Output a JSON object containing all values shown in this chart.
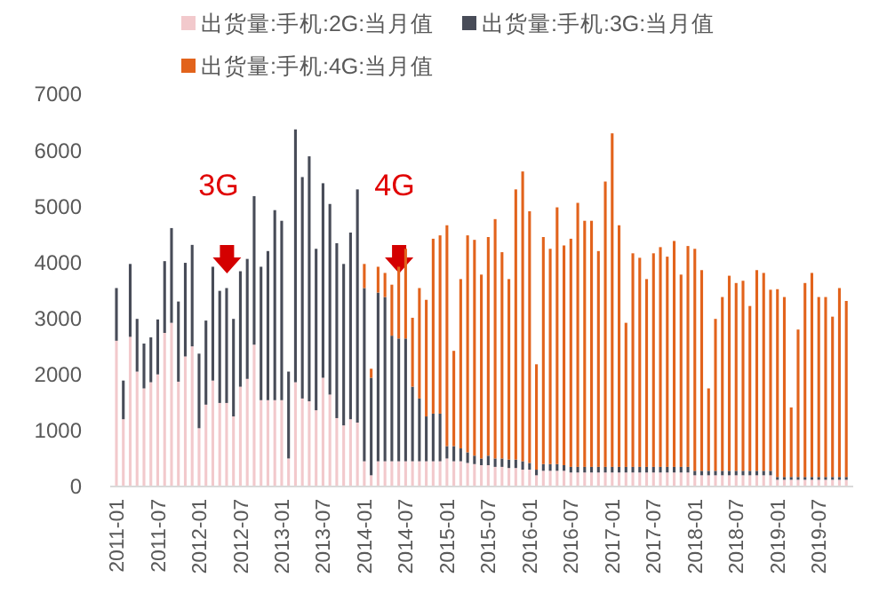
{
  "chart_data": {
    "type": "bar",
    "stacked": true,
    "legend": "top",
    "ylim": [
      0,
      7000
    ],
    "yticks": [
      0,
      1000,
      2000,
      3000,
      4000,
      5000,
      6000,
      7000
    ],
    "grid": false,
    "annotations": [
      "3G",
      "4G"
    ],
    "categories": [
      "2011-01",
      null,
      null,
      null,
      null,
      null,
      "2011-07",
      null,
      null,
      null,
      null,
      null,
      "2012-01",
      null,
      null,
      null,
      null,
      null,
      "2012-07",
      null,
      null,
      null,
      null,
      null,
      "2013-01",
      null,
      null,
      null,
      null,
      null,
      "2013-07",
      null,
      null,
      null,
      null,
      null,
      "2014-01",
      null,
      null,
      null,
      null,
      null,
      "2014-07",
      null,
      null,
      null,
      null,
      null,
      "2015-01",
      null,
      null,
      null,
      null,
      null,
      "2015-07",
      null,
      null,
      null,
      null,
      null,
      "2016-01",
      null,
      null,
      null,
      null,
      null,
      "2016-07",
      null,
      null,
      null,
      null,
      null,
      "2017-01",
      null,
      null,
      null,
      null,
      null,
      "2017-07",
      null,
      null,
      null,
      null,
      null,
      "2018-01",
      null,
      null,
      null,
      null,
      null,
      "2018-07",
      null,
      null,
      null,
      null,
      null,
      "2019-01",
      null,
      null,
      null,
      null,
      null,
      "2019-07",
      null,
      null,
      null,
      null
    ],
    "series": [
      {
        "name": "出货量:手机:2G:当月值",
        "color": "#f2c9cc",
        "values": [
          2600,
          1200,
          2670,
          2050,
          1750,
          1860,
          2000,
          2740,
          2920,
          1870,
          2320,
          2500,
          1040,
          1460,
          1890,
          1490,
          1490,
          1250,
          1780,
          1920,
          2530,
          1540,
          1540,
          1540,
          1540,
          500,
          1860,
          1570,
          1520,
          1360,
          1940,
          1640,
          1220,
          1090,
          1200,
          1140,
          450,
          200,
          450,
          450,
          450,
          450,
          450,
          450,
          450,
          450,
          450,
          450,
          500,
          450,
          450,
          420,
          400,
          380,
          380,
          350,
          350,
          330,
          330,
          300,
          300,
          200,
          280,
          280,
          280,
          280,
          250,
          250,
          250,
          250,
          250,
          250,
          250,
          250,
          250,
          250,
          250,
          250,
          250,
          250,
          250,
          250,
          250,
          250,
          200,
          200,
          200,
          200,
          200,
          200,
          200,
          200,
          200,
          200,
          200,
          200,
          120,
          120,
          120,
          120,
          120,
          120,
          120,
          120,
          120,
          120,
          120
        ]
      },
      {
        "name": "出货量:手机:3G:当月值",
        "color": "#484c58",
        "values": [
          940,
          690,
          1300,
          940,
          800,
          800,
          980,
          1280,
          1690,
          1430,
          1670,
          1810,
          1330,
          1500,
          2030,
          2000,
          2050,
          1740,
          2060,
          2140,
          2650,
          2380,
          2660,
          3390,
          3200,
          1550,
          4510,
          3950,
          4370,
          2880,
          3470,
          3400,
          3120,
          2880,
          3330,
          4160,
          3090,
          1740,
          3010,
          2930,
          2240,
          2190,
          2190,
          1330,
          1120,
          800,
          850,
          850,
          220,
          270,
          230,
          190,
          150,
          120,
          170,
          150,
          150,
          150,
          150,
          150,
          120,
          100,
          120,
          120,
          120,
          100,
          100,
          100,
          100,
          100,
          100,
          100,
          100,
          100,
          100,
          100,
          100,
          100,
          100,
          100,
          100,
          100,
          100,
          100,
          80,
          80,
          80,
          80,
          80,
          80,
          80,
          80,
          80,
          80,
          80,
          80,
          50,
          50,
          50,
          50,
          50,
          50,
          50,
          50,
          50,
          50,
          50
        ]
      },
      {
        "name": "出货量:手机:4G:当月值",
        "color": "#e2631c",
        "values": [
          null,
          null,
          null,
          null,
          null,
          null,
          null,
          null,
          null,
          null,
          null,
          null,
          null,
          null,
          null,
          null,
          null,
          null,
          null,
          null,
          null,
          null,
          null,
          null,
          null,
          null,
          null,
          null,
          null,
          null,
          null,
          null,
          null,
          null,
          null,
          null,
          430,
          160,
          460,
          430,
          910,
          1280,
          1600,
          1230,
          1970,
          2080,
          3120,
          3180,
          3940,
          1700,
          3020,
          3870,
          3850,
          3280,
          3900,
          4270,
          3680,
          3220,
          4820,
          5170,
          4490,
          1880,
          4050,
          3840,
          4580,
          3920,
          4070,
          4710,
          4390,
          4390,
          3850,
          5090,
          5950,
          4310,
          2570,
          3810,
          3730,
          3350,
          3810,
          3920,
          3750,
          4030,
          3430,
          3940,
          3960,
          3580,
          1470,
          2710,
          3100,
          3480,
          3350,
          3390,
          2940,
          3580,
          3530,
          3230,
          3350,
          3210,
          1240,
          2630,
          3460,
          3640,
          3210,
          3210,
          2860,
          3370,
          3140
        ]
      }
    ]
  }
}
